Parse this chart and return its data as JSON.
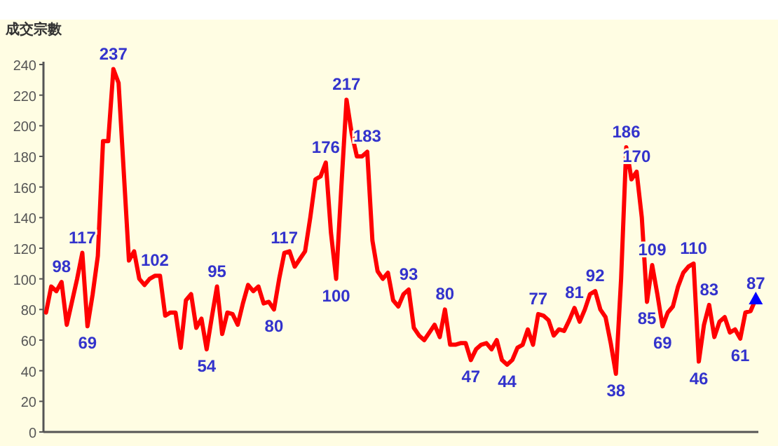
{
  "chart_data": {
    "type": "line",
    "title": "成交宗數",
    "categories": [
      null,
      null,
      null,
      null,
      null,
      null,
      null,
      null,
      null,
      null,
      null,
      null,
      null,
      null,
      null,
      null,
      null,
      null,
      null,
      null,
      null,
      null,
      null,
      null,
      null,
      null,
      null,
      null,
      null,
      null,
      null,
      null,
      null,
      null,
      null,
      null,
      null,
      null,
      null,
      null,
      null,
      null,
      null,
      null,
      null,
      null,
      null,
      null,
      null,
      null,
      null,
      null,
      null,
      null,
      null,
      null,
      null,
      null,
      null,
      null,
      null,
      null,
      null,
      null,
      null,
      null,
      null,
      null,
      null,
      null,
      null,
      null,
      null,
      null,
      null,
      null,
      null,
      null,
      null,
      null,
      null,
      null,
      null,
      null,
      null,
      null,
      null,
      null,
      null,
      null,
      null,
      null,
      null,
      null,
      null,
      null,
      null,
      null,
      null,
      null,
      null,
      null,
      null,
      null,
      null,
      null,
      null,
      null,
      null,
      null,
      null,
      null,
      null,
      null,
      null,
      null,
      null,
      null,
      null,
      null,
      null,
      null,
      null,
      null,
      null,
      null,
      null,
      null,
      null,
      null,
      null,
      null,
      null,
      null,
      null,
      null,
      null,
      null
    ],
    "ylim": [
      0,
      240
    ],
    "yticks": [
      0,
      20,
      40,
      60,
      80,
      100,
      120,
      140,
      160,
      180,
      200,
      220,
      240
    ],
    "grid": false,
    "series": [
      {
        "color": "#ff0000",
        "marker": "none",
        "line_style": "solid",
        "values": [
          78,
          95,
          92,
          98,
          70,
          85,
          100,
          117,
          69,
          90,
          115,
          190,
          190,
          237,
          228,
          170,
          112,
          118,
          100,
          96,
          100,
          102,
          102,
          76,
          78,
          78,
          55,
          86,
          90,
          68,
          74,
          54,
          75,
          95,
          64,
          78,
          77,
          70,
          84,
          96,
          92,
          95,
          84,
          85,
          80,
          100,
          117,
          118,
          108,
          113,
          118,
          140,
          165,
          167,
          176,
          130,
          100,
          160,
          217,
          195,
          180,
          180,
          183,
          125,
          105,
          100,
          104,
          86,
          82,
          90,
          93,
          68,
          63,
          60,
          65,
          70,
          62,
          80,
          57,
          57,
          58,
          58,
          47,
          54,
          57,
          58,
          54,
          60,
          47,
          44,
          47,
          55,
          57,
          67,
          57,
          77,
          76,
          73,
          63,
          67,
          66,
          73,
          81,
          72,
          80,
          90,
          92,
          80,
          75,
          58,
          38,
          100,
          186,
          165,
          170,
          140,
          85,
          109,
          90,
          69,
          78,
          82,
          95,
          104,
          108,
          110,
          46,
          70,
          83,
          62,
          72,
          75,
          65,
          67,
          61,
          78,
          79,
          87
        ],
        "value_labels": [
          null,
          null,
          null,
          "98",
          null,
          null,
          null,
          "117",
          "69",
          null,
          null,
          null,
          null,
          "237",
          null,
          null,
          null,
          null,
          null,
          null,
          null,
          "102",
          null,
          null,
          null,
          null,
          null,
          null,
          null,
          null,
          null,
          "54",
          null,
          "95",
          null,
          null,
          null,
          null,
          null,
          null,
          null,
          null,
          null,
          null,
          "80",
          null,
          "117",
          null,
          null,
          null,
          null,
          null,
          null,
          null,
          "176",
          null,
          "100",
          null,
          "217",
          null,
          null,
          null,
          "183",
          null,
          null,
          null,
          null,
          null,
          null,
          null,
          "93",
          null,
          null,
          null,
          null,
          null,
          null,
          "80",
          null,
          null,
          null,
          null,
          "47",
          null,
          null,
          null,
          null,
          null,
          null,
          "44",
          null,
          null,
          null,
          null,
          null,
          "77",
          null,
          null,
          null,
          null,
          null,
          null,
          "81",
          null,
          null,
          null,
          "92",
          null,
          null,
          null,
          "38",
          null,
          "186",
          null,
          "170",
          null,
          "85",
          "109",
          null,
          "69",
          null,
          null,
          null,
          null,
          null,
          "110",
          "46",
          null,
          "83",
          null,
          null,
          null,
          null,
          null,
          "61",
          null,
          null,
          "87"
        ]
      },
      {
        "type": "scatter",
        "color": "#0000ff",
        "marker": "triangle",
        "values": [
          null,
          null,
          null,
          null,
          null,
          null,
          null,
          null,
          null,
          null,
          null,
          null,
          null,
          null,
          null,
          null,
          null,
          null,
          null,
          null,
          null,
          null,
          null,
          null,
          null,
          null,
          null,
          null,
          null,
          null,
          null,
          null,
          null,
          null,
          null,
          null,
          null,
          null,
          null,
          null,
          null,
          null,
          null,
          null,
          null,
          null,
          null,
          null,
          null,
          null,
          null,
          null,
          null,
          null,
          null,
          null,
          null,
          null,
          null,
          null,
          null,
          null,
          null,
          null,
          null,
          null,
          null,
          null,
          null,
          null,
          null,
          null,
          null,
          null,
          null,
          null,
          null,
          null,
          null,
          null,
          null,
          null,
          null,
          null,
          null,
          null,
          null,
          null,
          null,
          null,
          null,
          null,
          null,
          null,
          null,
          null,
          null,
          null,
          null,
          null,
          null,
          null,
          null,
          null,
          null,
          null,
          null,
          null,
          null,
          null,
          null,
          null,
          null,
          null,
          null,
          null,
          null,
          null,
          null,
          null,
          null,
          null,
          null,
          null,
          null,
          null,
          null,
          null,
          null,
          null,
          null,
          null,
          null,
          null,
          null,
          null,
          null,
          87
        ]
      }
    ]
  }
}
